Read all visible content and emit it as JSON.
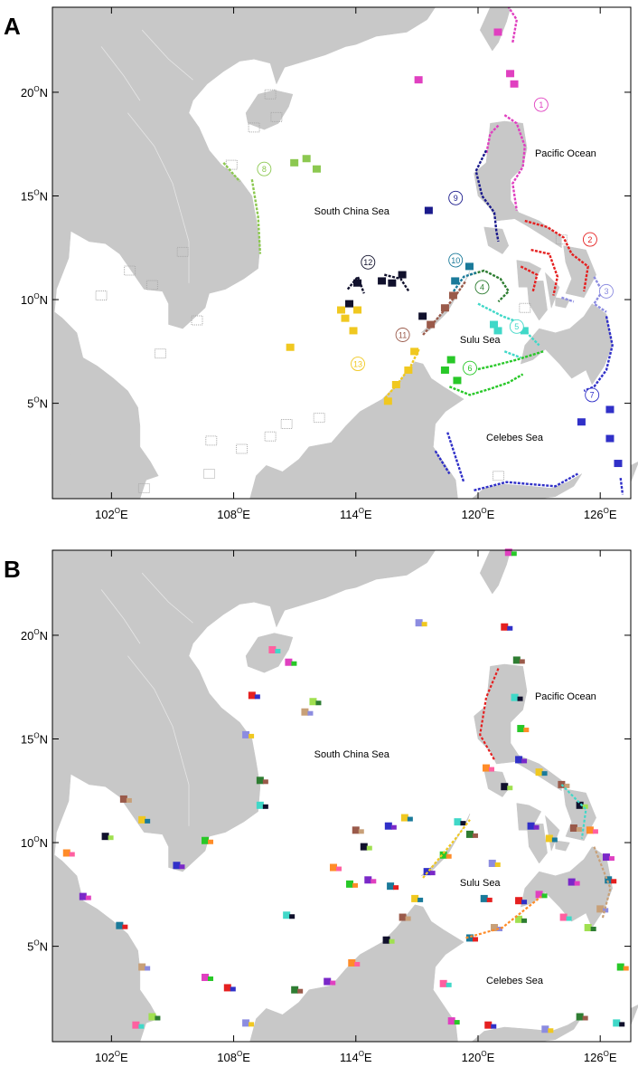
{
  "panels": [
    {
      "letter": "A",
      "y_ticks": [
        {
          "lat": 20,
          "label": "20",
          "sup": "O",
          "hemi": "N"
        },
        {
          "lat": 15,
          "label": "15",
          "sup": "O",
          "hemi": "N"
        },
        {
          "lat": 10,
          "label": "10",
          "sup": "O",
          "hemi": "N"
        },
        {
          "lat": 5,
          "label": "5",
          "sup": "O",
          "hemi": "N"
        }
      ],
      "x_ticks": [
        {
          "lon": 102,
          "label": "102",
          "sup": "O",
          "hemi": "E"
        },
        {
          "lon": 108,
          "label": "108",
          "sup": "O",
          "hemi": "E"
        },
        {
          "lon": 114,
          "label": "114",
          "sup": "O",
          "hemi": "E"
        },
        {
          "lon": 120,
          "label": "120",
          "sup": "O",
          "hemi": "E"
        },
        {
          "lon": 126,
          "label": "126",
          "sup": "O",
          "hemi": "E"
        }
      ],
      "sea_labels": [
        {
          "text": "Pacific Ocean",
          "lon": 124.3,
          "lat": 16.9
        },
        {
          "text": "South China Sea",
          "lon": 113.8,
          "lat": 14.1
        },
        {
          "text": "Sulu Sea",
          "lon": 120.1,
          "lat": 7.9
        },
        {
          "text": "Celebes Sea",
          "lon": 121.8,
          "lat": 3.2
        }
      ],
      "clusters": [
        {
          "id": "1",
          "color": "#e040c0",
          "lon": 123.1,
          "lat": 19.4
        },
        {
          "id": "2",
          "color": "#e52020",
          "lon": 125.5,
          "lat": 12.9
        },
        {
          "id": "3",
          "color": "#8c8ce0",
          "lon": 126.3,
          "lat": 10.4
        },
        {
          "id": "4",
          "color": "#2e7d32",
          "lon": 120.2,
          "lat": 10.6
        },
        {
          "id": "5",
          "color": "#40d8c8",
          "lon": 121.9,
          "lat": 8.7
        },
        {
          "id": "6",
          "color": "#28c828",
          "lon": 119.6,
          "lat": 6.7
        },
        {
          "id": "7",
          "color": "#3030c8",
          "lon": 125.6,
          "lat": 5.4
        },
        {
          "id": "8",
          "color": "#8cc850",
          "lon": 109.5,
          "lat": 16.3
        },
        {
          "id": "9",
          "color": "#1a1a8c",
          "lon": 118.9,
          "lat": 14.9
        },
        {
          "id": "10",
          "color": "#1a7a9a",
          "lon": 118.9,
          "lat": 11.9
        },
        {
          "id": "11",
          "color": "#9a5a4a",
          "lon": 116.3,
          "lat": 8.3
        },
        {
          "id": "12",
          "color": "#10102c",
          "lon": 114.6,
          "lat": 11.8
        },
        {
          "id": "13",
          "color": "#f0c820",
          "lon": 114.1,
          "lat": 6.9
        }
      ]
    },
    {
      "letter": "B",
      "y_ticks": [
        {
          "lat": 20,
          "label": "20",
          "sup": "O",
          "hemi": "N"
        },
        {
          "lat": 15,
          "label": "15",
          "sup": "O",
          "hemi": "N"
        },
        {
          "lat": 10,
          "label": "10",
          "sup": "O",
          "hemi": "N"
        },
        {
          "lat": 5,
          "label": "5",
          "sup": "O",
          "hemi": "N"
        }
      ],
      "x_ticks": [
        {
          "lon": 102,
          "label": "102",
          "sup": "O",
          "hemi": "E"
        },
        {
          "lon": 108,
          "label": "108",
          "sup": "O",
          "hemi": "E"
        },
        {
          "lon": 114,
          "label": "114",
          "sup": "O",
          "hemi": "E"
        },
        {
          "lon": 120,
          "label": "120",
          "sup": "O",
          "hemi": "E"
        },
        {
          "lon": 126,
          "label": "126",
          "sup": "O",
          "hemi": "E"
        }
      ],
      "sea_labels": [
        {
          "text": "Pacific Ocean",
          "lon": 124.3,
          "lat": 16.9
        },
        {
          "text": "South China Sea",
          "lon": 113.8,
          "lat": 14.1
        },
        {
          "text": "Sulu Sea",
          "lon": 120.1,
          "lat": 7.9
        },
        {
          "text": "Celebes Sea",
          "lon": 121.8,
          "lat": 3.2
        }
      ]
    }
  ],
  "colors": {
    "land": "#c8c8c8",
    "sea": "#ffffff",
    "frame": "#000000",
    "ungrouped_cells": "#a8a8a8"
  }
}
